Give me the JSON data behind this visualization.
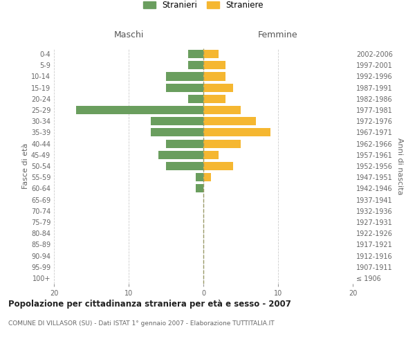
{
  "age_groups": [
    "100+",
    "95-99",
    "90-94",
    "85-89",
    "80-84",
    "75-79",
    "70-74",
    "65-69",
    "60-64",
    "55-59",
    "50-54",
    "45-49",
    "40-44",
    "35-39",
    "30-34",
    "25-29",
    "20-24",
    "15-19",
    "10-14",
    "5-9",
    "0-4"
  ],
  "birth_years": [
    "≤ 1906",
    "1907-1911",
    "1912-1916",
    "1917-1921",
    "1922-1926",
    "1927-1931",
    "1932-1936",
    "1937-1941",
    "1942-1946",
    "1947-1951",
    "1952-1956",
    "1957-1961",
    "1962-1966",
    "1967-1971",
    "1972-1976",
    "1977-1981",
    "1982-1986",
    "1987-1991",
    "1992-1996",
    "1997-2001",
    "2002-2006"
  ],
  "males": [
    0,
    0,
    0,
    0,
    0,
    0,
    0,
    0,
    1,
    1,
    5,
    6,
    5,
    7,
    7,
    17,
    2,
    5,
    5,
    2,
    2
  ],
  "females": [
    0,
    0,
    0,
    0,
    0,
    0,
    0,
    0,
    0,
    1,
    4,
    2,
    5,
    9,
    7,
    5,
    3,
    4,
    3,
    3,
    2
  ],
  "male_color": "#6a9e5e",
  "female_color": "#f5b731",
  "background_color": "#ffffff",
  "grid_color": "#cccccc",
  "title1": "Popolazione per cittadinanza straniera per età e sesso - 2007",
  "subtitle": "COMUNE DI VILLASOR (SU) - Dati ISTAT 1° gennaio 2007 - Elaborazione TUTTITALIA.IT",
  "xlabel_left": "Maschi",
  "xlabel_right": "Femmine",
  "ylabel_left": "Fasce di età",
  "ylabel_right": "Anni di nascita",
  "legend_male": "Stranieri",
  "legend_female": "Straniere",
  "xlim": 20,
  "bar_height": 0.75,
  "dashed_line_color": "#999966"
}
